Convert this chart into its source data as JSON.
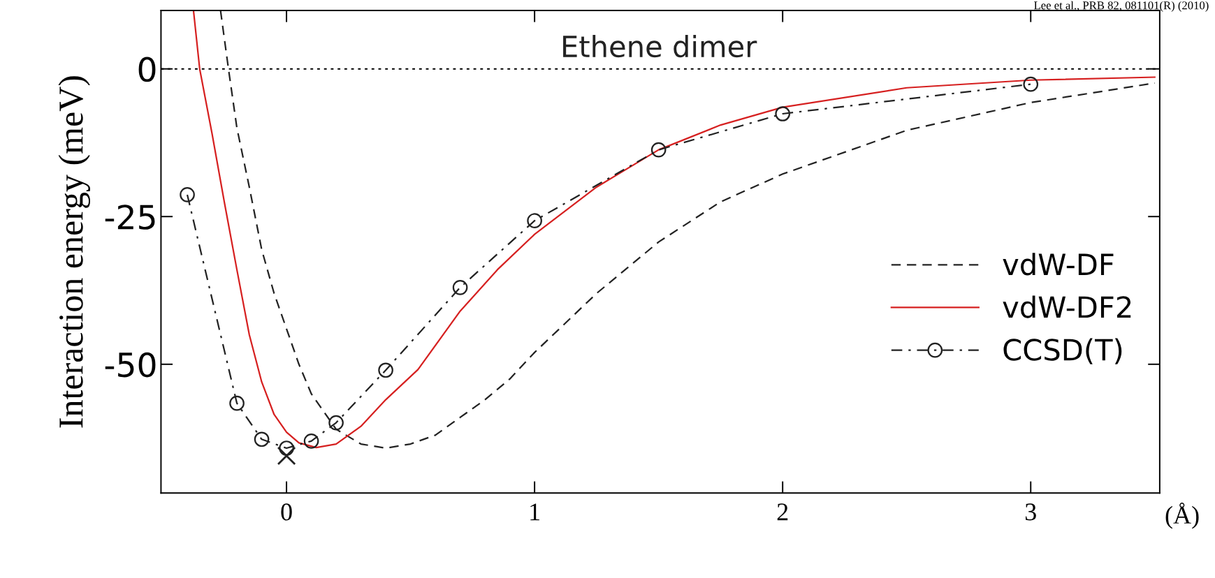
{
  "chart_data": {
    "type": "line",
    "xlabel": "(Å)",
    "ylabel": "Interaction energy (meV)",
    "xlim": [
      -0.506,
      3.52
    ],
    "ylim": [
      -71.8,
      9.9
    ],
    "xticks": [
      0,
      1,
      2,
      3
    ],
    "yticks": [
      0,
      -25,
      -50
    ],
    "annotations": [
      {
        "text": "Ethene dimer",
        "x": 1.5,
        "y": 0
      },
      "Lee et al., PRB 82, 081101(R) (2010)"
    ],
    "ref_lines": [
      {
        "axis": "y",
        "value": 0,
        "line_style": "dotted",
        "color": "#000000"
      }
    ],
    "legend": "right",
    "grid": false,
    "series": [
      {
        "name": "vdW-DF",
        "color": "#222222",
        "line_style": "dashed",
        "marker": "none",
        "x": [
          -0.266,
          -0.234,
          -0.2,
          -0.15,
          -0.1,
          -0.05,
          0,
          0.05,
          0.1,
          0.2,
          0.3,
          0.4,
          0.5,
          0.6,
          0.7,
          0.8,
          0.9,
          1.0,
          1.25,
          1.5,
          1.75,
          2.0,
          2.5,
          3.0,
          3.5
        ],
        "values": [
          9.9,
          0,
          -10,
          -20,
          -30.6,
          -38,
          -44,
          -50,
          -55,
          -61,
          -63.5,
          -64.2,
          -63.5,
          -62,
          -59,
          -56,
          -52.5,
          -48,
          -38,
          -29.3,
          -22.5,
          -17.8,
          -10.4,
          -5.7,
          -2.4
        ]
      },
      {
        "name": "vdW-DF2",
        "color": "#d62020",
        "line_style": "solid",
        "marker": "none",
        "x": [
          -0.375,
          -0.35,
          -0.3,
          -0.25,
          -0.2,
          -0.15,
          -0.1,
          -0.05,
          0,
          0.05,
          0.12,
          0.2,
          0.3,
          0.4,
          0.53,
          0.7,
          0.85,
          1.0,
          1.25,
          1.5,
          1.75,
          2.0,
          2.5,
          3.0,
          3.5
        ],
        "values": [
          9.9,
          0,
          -11,
          -22.7,
          -34,
          -45,
          -53,
          -58.5,
          -61.5,
          -63.3,
          -64.1,
          -63.5,
          -60.5,
          -56,
          -50.9,
          -41,
          -34,
          -28,
          -20,
          -13.7,
          -9.5,
          -6.5,
          -3.2,
          -1.9,
          -1.4
        ]
      },
      {
        "name": "CCSD(T)",
        "color": "#222222",
        "line_style": "dashdot",
        "marker": "circle",
        "x": [
          -0.4,
          -0.2,
          -0.1,
          0,
          0.1,
          0.2,
          0.4,
          0.7,
          1.0,
          1.5,
          2.0,
          3.0
        ],
        "values": [
          -21.3,
          -56.6,
          -62.7,
          -64.2,
          -63.0,
          -59.9,
          -51.0,
          -37.0,
          -25.7,
          -13.7,
          -7.6,
          -2.6
        ]
      },
      {
        "type": "scatter",
        "color": "#222222",
        "marker": "cross",
        "x": [
          0
        ],
        "values": [
          -65.5
        ]
      }
    ]
  }
}
